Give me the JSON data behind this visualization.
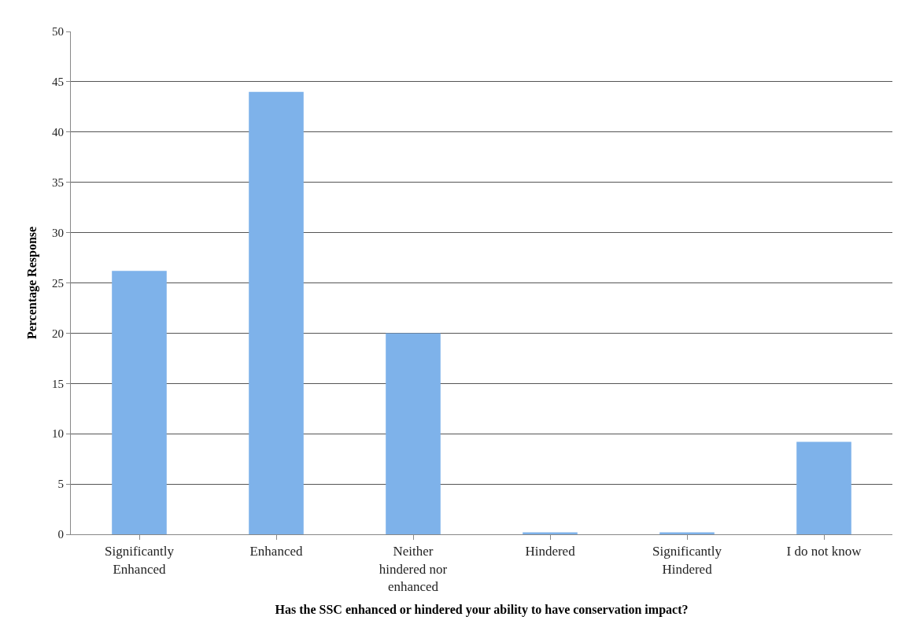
{
  "chart_data": {
    "type": "bar",
    "xlabel": "Has the SSC enhanced or hindered your ability to have conservation impact?",
    "ylabel": "Percentage Response",
    "categories": [
      "Significantly Enhanced",
      "Enhanced",
      "Neither hindered nor enhanced",
      "Hindered",
      "Significantly Hindered",
      "I do not know"
    ],
    "values": [
      26.2,
      44,
      20,
      0.2,
      0.2,
      9.2
    ],
    "color": "#7eb2ea",
    "ylim": [
      0,
      50
    ],
    "yticks": [
      0,
      5,
      10,
      15,
      20,
      25,
      30,
      35,
      40,
      45,
      50
    ],
    "grid": "y",
    "legend": false
  }
}
